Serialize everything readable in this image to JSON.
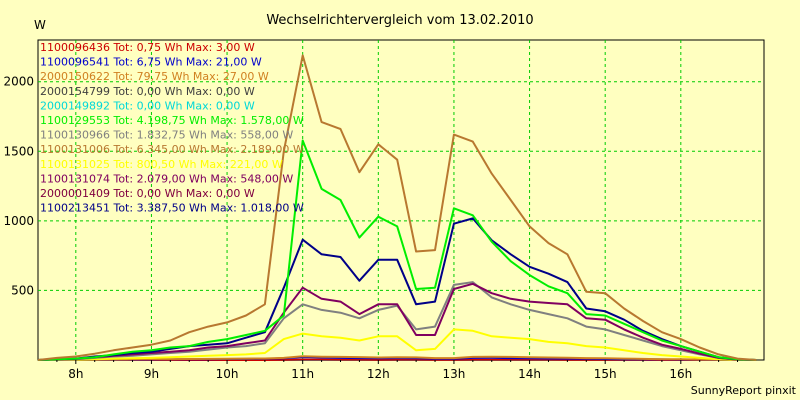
{
  "chart_data": {
    "type": "line",
    "title": "Wechselrichtervergleich vom 13.02.2010",
    "ylabel": "W",
    "xlabel": "",
    "ylim": [
      0,
      2300
    ],
    "xlim": [
      7.5,
      17.1
    ],
    "grid": true,
    "legend_placement": "top-left",
    "y_ticks": [
      500,
      1000,
      1500,
      2000
    ],
    "x_ticks": [
      {
        "v": 8,
        "label": "8h"
      },
      {
        "v": 9,
        "label": "9h"
      },
      {
        "v": 10,
        "label": "10h"
      },
      {
        "v": 11,
        "label": "11h"
      },
      {
        "v": 12,
        "label": "12h"
      },
      {
        "v": 13,
        "label": "13h"
      },
      {
        "v": 14,
        "label": "14h"
      },
      {
        "v": 15,
        "label": "15h"
      },
      {
        "v": 16,
        "label": "16h"
      }
    ],
    "x": [
      7.5,
      7.75,
      8.0,
      8.25,
      8.5,
      8.75,
      9.0,
      9.25,
      9.5,
      9.75,
      10.0,
      10.25,
      10.5,
      10.75,
      11.0,
      11.25,
      11.5,
      11.75,
      12.0,
      12.25,
      12.5,
      12.75,
      13.0,
      13.25,
      13.5,
      13.75,
      14.0,
      14.25,
      14.5,
      14.75,
      15.0,
      15.25,
      15.5,
      15.75,
      16.0,
      16.25,
      16.5,
      16.75,
      17.0
    ],
    "series": [
      {
        "name": "1100096436 Tot: 0,75 Wh Max: 3,00 W",
        "color": "#cc0000",
        "values": [
          0,
          0,
          0,
          0,
          0,
          0,
          0,
          0,
          0,
          0,
          0,
          0,
          0,
          1,
          3,
          3,
          2,
          2,
          1,
          2,
          2,
          1,
          1,
          2,
          2,
          2,
          2,
          2,
          1,
          1,
          1,
          1,
          1,
          0,
          0,
          0,
          0,
          0,
          0
        ]
      },
      {
        "name": "1100096541 Tot: 6,75 Wh Max: 21,00 W",
        "color": "#0000cc",
        "values": [
          0,
          0,
          0,
          1,
          1,
          2,
          3,
          4,
          5,
          6,
          7,
          8,
          9,
          12,
          21,
          18,
          15,
          14,
          12,
          14,
          13,
          9,
          9,
          15,
          16,
          14,
          12,
          11,
          10,
          9,
          7,
          6,
          5,
          4,
          3,
          2,
          1,
          0,
          0
        ]
      },
      {
        "name": "2000150622 Tot: 79,75 Wh Max: 27,00 W",
        "color": "#d08020",
        "values": [
          0,
          0,
          1,
          2,
          3,
          4,
          5,
          6,
          7,
          8,
          9,
          10,
          11,
          15,
          27,
          24,
          22,
          21,
          18,
          20,
          19,
          14,
          14,
          22,
          24,
          22,
          20,
          18,
          16,
          14,
          12,
          10,
          8,
          6,
          5,
          3,
          2,
          1,
          0
        ]
      },
      {
        "name": "2000154799 Tot: 0,00 Wh Max: 0,00 W",
        "color": "#404040",
        "values": [
          0,
          0,
          0,
          0,
          0,
          0,
          0,
          0,
          0,
          0,
          0,
          0,
          0,
          0,
          0,
          0,
          0,
          0,
          0,
          0,
          0,
          0,
          0,
          0,
          0,
          0,
          0,
          0,
          0,
          0,
          0,
          0,
          0,
          0,
          0,
          0,
          0,
          0,
          0
        ]
      },
      {
        "name": "2000149892 Tot: 0,00 Wh Max: 0,00 W",
        "color": "#00d8d8",
        "values": [
          0,
          0,
          0,
          0,
          0,
          0,
          0,
          0,
          0,
          0,
          0,
          0,
          0,
          0,
          0,
          0,
          0,
          0,
          0,
          0,
          0,
          0,
          0,
          0,
          0,
          0,
          0,
          0,
          0,
          0,
          0,
          0,
          0,
          0,
          0,
          0,
          0,
          0,
          0
        ]
      },
      {
        "name": "1100129553 Tot: 4.198,75 Wh Max: 1.578,00 W",
        "color": "#00ee00",
        "values": [
          0,
          5,
          10,
          20,
          40,
          60,
          70,
          90,
          100,
          130,
          150,
          180,
          210,
          320,
          1578,
          1230,
          1150,
          880,
          1030,
          960,
          510,
          520,
          1090,
          1040,
          850,
          710,
          610,
          530,
          480,
          330,
          320,
          260,
          200,
          140,
          100,
          60,
          20,
          5,
          0
        ]
      },
      {
        "name": "1100130966 Tot: 1.832,75 Wh Max: 558,00 W",
        "color": "#808080",
        "values": [
          0,
          2,
          5,
          15,
          25,
          30,
          40,
          50,
          60,
          75,
          90,
          100,
          120,
          300,
          400,
          360,
          340,
          300,
          360,
          390,
          220,
          240,
          540,
          560,
          450,
          400,
          360,
          330,
          300,
          240,
          220,
          180,
          140,
          100,
          70,
          40,
          15,
          3,
          0
        ]
      },
      {
        "name": "1100131006 Tot: 6.345,00 Wh Max: 2.189,00 W",
        "color": "#b87830",
        "values": [
          0,
          15,
          25,
          45,
          70,
          90,
          110,
          140,
          200,
          240,
          270,
          320,
          400,
          1500,
          2189,
          1710,
          1660,
          1350,
          1550,
          1440,
          780,
          790,
          1620,
          1570,
          1340,
          1150,
          960,
          840,
          760,
          490,
          480,
          370,
          280,
          200,
          150,
          90,
          40,
          10,
          0
        ]
      },
      {
        "name": "1100131025 Tot: 800,50 Wh Max: 221,00 W",
        "color": "#ffff00",
        "values": [
          0,
          1,
          3,
          6,
          10,
          12,
          15,
          20,
          25,
          30,
          35,
          40,
          50,
          150,
          190,
          170,
          160,
          140,
          170,
          170,
          70,
          80,
          220,
          210,
          170,
          160,
          150,
          130,
          120,
          100,
          90,
          70,
          50,
          35,
          25,
          15,
          5,
          1,
          0
        ]
      },
      {
        "name": "1100131074 Tot: 2.079,00 Wh Max: 548,00 W",
        "color": "#800060",
        "values": [
          0,
          4,
          8,
          20,
          30,
          40,
          50,
          60,
          70,
          90,
          100,
          120,
          140,
          340,
          520,
          440,
          420,
          330,
          400,
          400,
          180,
          180,
          510,
          548,
          480,
          440,
          420,
          410,
          400,
          300,
          290,
          220,
          160,
          110,
          80,
          45,
          15,
          3,
          0
        ]
      },
      {
        "name": "2000001409 Tot: 0,00 Wh Max: 0,00 W",
        "color": "#800040",
        "values": [
          0,
          0,
          0,
          0,
          0,
          0,
          0,
          0,
          0,
          0,
          0,
          0,
          0,
          0,
          0,
          0,
          0,
          0,
          0,
          0,
          0,
          0,
          0,
          0,
          0,
          0,
          0,
          0,
          0,
          0,
          0,
          0,
          0,
          0,
          0,
          0,
          0,
          0,
          0
        ]
      },
      {
        "name": "1100213451 Tot: 3.387,50 Wh Max: 1.018,00 W",
        "color": "#000088",
        "values": [
          0,
          5,
          10,
          25,
          35,
          50,
          60,
          80,
          100,
          110,
          120,
          160,
          200,
          520,
          865,
          760,
          740,
          570,
          720,
          720,
          400,
          420,
          980,
          1018,
          860,
          760,
          670,
          620,
          560,
          370,
          350,
          290,
          210,
          150,
          100,
          60,
          20,
          5,
          0
        ]
      }
    ]
  },
  "footer": "SunnyReport pinxit"
}
